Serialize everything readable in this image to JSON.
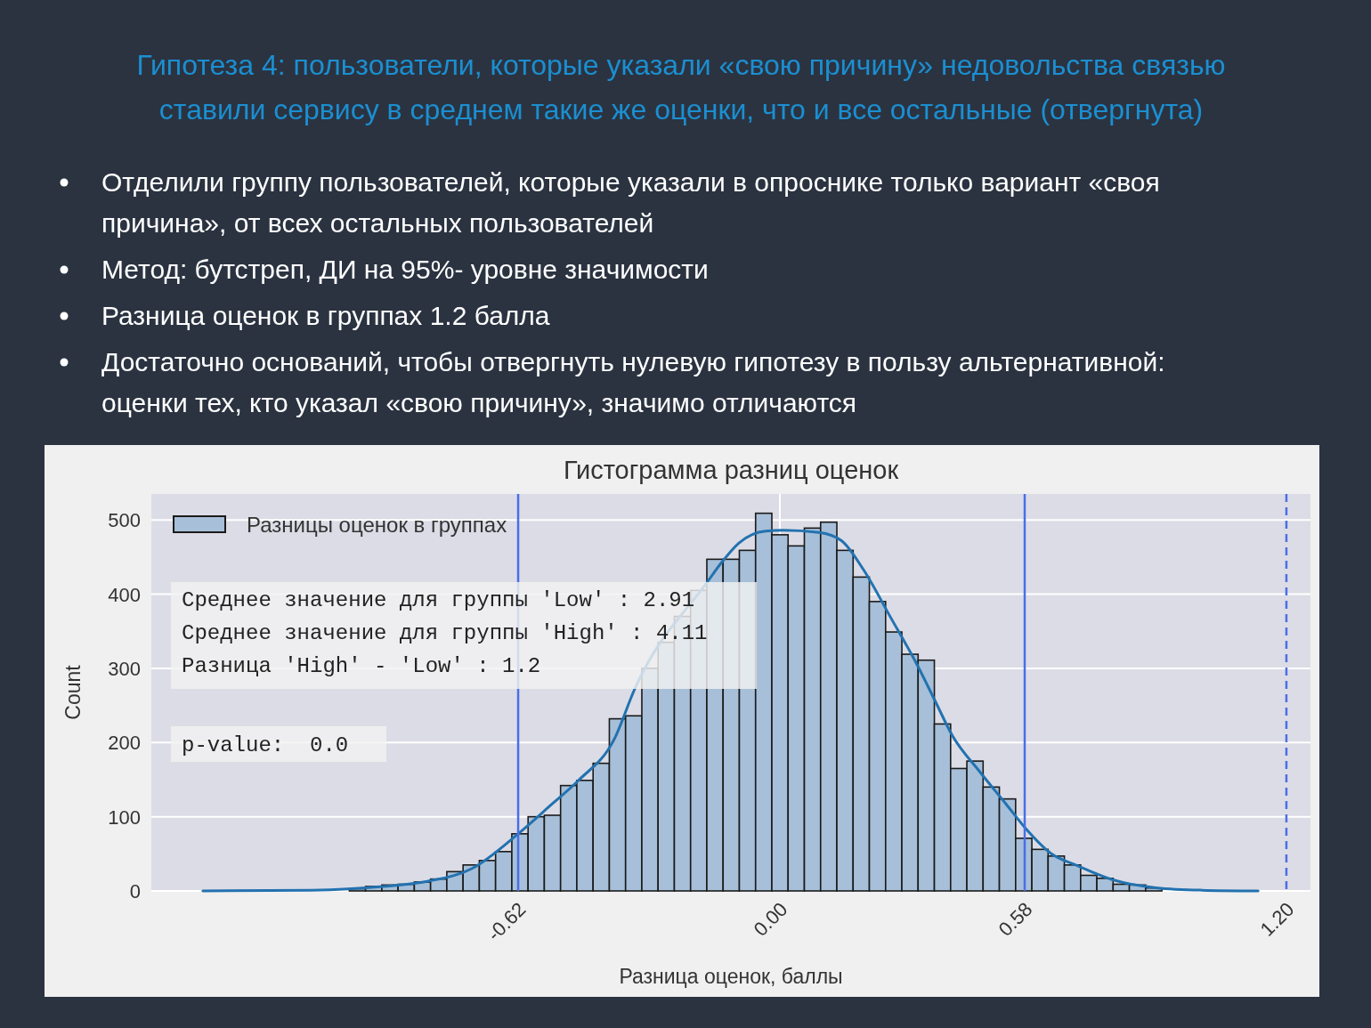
{
  "chart_data": {
    "type": "histogram",
    "title": "Гистограмма разниц оценок",
    "xlabel": "Разница оценок, баллы",
    "ylabel": "Count",
    "annotations": [
      "Гипотеза 4: пользователи, которые указали «свою причину» недовольства связью ставили сервису в среднем такие же оценки, что и все остальные (отвергнута)",
      "Отделили группу пользователей, которые указали в опроснике только вариант «своя причина», от всех остальных пользователей",
      "Метод: бутстреп, ДИ на 95%- уровне значимости",
      "Разница оценок в группах 1.2 балла",
      "Достаточно оснований, чтобы отвергнуть нулевую гипотезу в пользу альтернативной: оценки тех, кто указал «свою причину», значимо отличаются",
      "Среднее значение для группы 'Low' : 2.91",
      "Среднее значение для группы 'High' : 4.11",
      "Разница 'High' - 'Low' : 1.2",
      "p-value:  0.0"
    ],
    "bins": [
      -1.02,
      -0.9815,
      -0.943,
      -0.9045,
      -0.866,
      -0.8275,
      -0.789,
      -0.7505,
      -0.712,
      -0.6735,
      -0.635,
      -0.5965,
      -0.558,
      -0.5195,
      -0.481,
      -0.4425,
      -0.404,
      -0.3655,
      -0.327,
      -0.2885,
      -0.25,
      -0.2115,
      -0.173,
      -0.1345,
      -0.096,
      -0.0575,
      -0.019,
      0.0195,
      0.058,
      0.0965,
      0.135,
      0.1735,
      0.212,
      0.2505,
      0.289,
      0.3275,
      0.366,
      0.4045,
      0.443,
      0.4815,
      0.52,
      0.5585,
      0.597,
      0.6355,
      0.674,
      0.7125,
      0.751,
      0.7895,
      0.828,
      0.8665,
      0.905
    ],
    "series": [
      {
        "name": "Разницы оценок в группах",
        "color": "#a7bfd8",
        "values": [
          3,
          6,
          8,
          9,
          12,
          16,
          26,
          35,
          41,
          53,
          77,
          100,
          102,
          142,
          149,
          172,
          232,
          236,
          300,
          335,
          370,
          405,
          447,
          447,
          459,
          509,
          480,
          465,
          489,
          497,
          459,
          423,
          390,
          349,
          319,
          311,
          225,
          165,
          175,
          140,
          124,
          71,
          56,
          47,
          35,
          21,
          17,
          9,
          8,
          4
        ]
      },
      {
        "type": "line",
        "color": "#2272b0",
        "x": [
          -1.367,
          -1.11,
          -0.94,
          -0.835,
          -0.73,
          -0.62,
          -0.54,
          -0.477,
          -0.392,
          -0.344,
          -0.171,
          -0.139,
          -0.097,
          -0.034,
          0.008,
          0.093,
          0.146,
          0.198,
          0.262,
          0.325,
          0.367,
          0.409,
          0.473,
          0.536,
          0.584,
          0.641,
          0.705,
          0.789,
          0.895,
          1.0,
          1.133
        ],
        "values": [
          0,
          1,
          6,
          13,
          30,
          77,
          117,
          149,
          205,
          272,
          417,
          442,
          469,
          485,
          486,
          483,
          472,
          433,
          369,
          305,
          257,
          209,
          161,
          117,
          83,
          51,
          34,
          15,
          4,
          1,
          0
        ]
      }
    ],
    "xlim": [
      -1.489,
      1.257
    ],
    "ylim": [
      0,
      535
    ],
    "xticks": [
      -0.62,
      {
        "value": 0,
        "label": "0.00"
      },
      0.58,
      {
        "value": 1.2,
        "label": "1.20"
      }
    ],
    "yticks": [
      0,
      100,
      200,
      300,
      400,
      500
    ],
    "ref_lines": [
      {
        "axis": "x",
        "value": -0.62,
        "color": "#4a6ee6",
        "line_style": "solid"
      },
      {
        "axis": "x",
        "value": 0.58,
        "color": "#4a6ee6",
        "line_style": "solid"
      },
      {
        "axis": "x",
        "value": 1.2,
        "color": "#4a6ee6",
        "line_style": "dashed"
      }
    ],
    "grid": true,
    "legend": "top left"
  }
}
